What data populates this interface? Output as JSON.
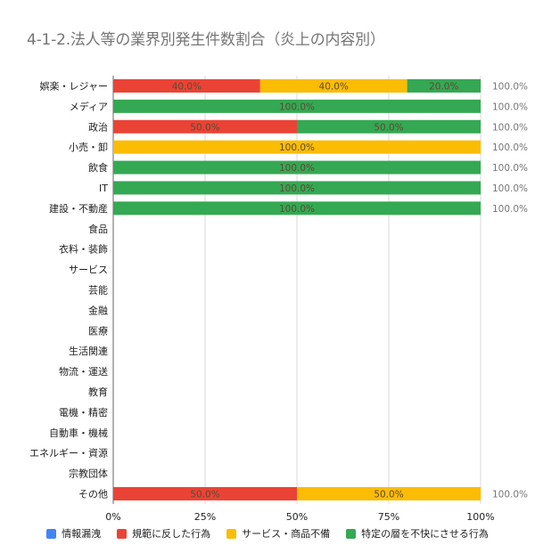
{
  "chart_data": {
    "type": "bar",
    "orientation": "horizontal",
    "stacked": "percent",
    "title": "4-1-2.法人等の業界別発生件数割合（炎上の内容別）",
    "categories": [
      "娯楽・レジャー",
      "メディア",
      "政治",
      "小売・卸",
      "飲食",
      "IT",
      "建設・不動産",
      "食品",
      "衣料・装飾",
      "サービス",
      "芸能",
      "金融",
      "医療",
      "生活関連",
      "物流・運送",
      "教育",
      "電機・精密",
      "自動車・機械",
      "エネルギー・資源",
      "宗教団体",
      "その他"
    ],
    "series": [
      {
        "name": "情報漏洩",
        "color": "#4285f4",
        "values": [
          0,
          0,
          0,
          0,
          0,
          0,
          0,
          0,
          0,
          0,
          0,
          0,
          0,
          0,
          0,
          0,
          0,
          0,
          0,
          0,
          0
        ]
      },
      {
        "name": "規範に反した行為",
        "color": "#ea4335",
        "values": [
          40,
          0,
          50,
          0,
          0,
          0,
          0,
          0,
          0,
          0,
          0,
          0,
          0,
          0,
          0,
          0,
          0,
          0,
          0,
          0,
          50
        ]
      },
      {
        "name": "サービス・商品不備",
        "color": "#fbbc04",
        "values": [
          40,
          0,
          0,
          100,
          0,
          0,
          0,
          0,
          0,
          0,
          0,
          0,
          0,
          0,
          0,
          0,
          0,
          0,
          0,
          0,
          50
        ]
      },
      {
        "name": "特定の層を不快にさせる行為",
        "color": "#34a853",
        "values": [
          20,
          100,
          50,
          0,
          100,
          100,
          100,
          0,
          0,
          0,
          0,
          0,
          0,
          0,
          0,
          0,
          0,
          0,
          0,
          0,
          0
        ]
      }
    ],
    "segment_labels": [
      [
        "",
        "40.0%",
        "40.0%",
        "20.0%"
      ],
      [
        "",
        "",
        "",
        "100.0%"
      ],
      [
        "",
        "50.0%",
        "",
        "50.0%"
      ],
      [
        "",
        "",
        "100.0%",
        ""
      ],
      [
        "",
        "",
        "",
        "100.0%"
      ],
      [
        "",
        "",
        "",
        "100.0%"
      ],
      [
        "",
        "",
        "",
        "100.0%"
      ],
      [
        "",
        "",
        "",
        ""
      ],
      [
        "",
        "",
        "",
        ""
      ],
      [
        "",
        "",
        "",
        ""
      ],
      [
        "",
        "",
        "",
        ""
      ],
      [
        "",
        "",
        "",
        ""
      ],
      [
        "",
        "",
        "",
        ""
      ],
      [
        "",
        "",
        "",
        ""
      ],
      [
        "",
        "",
        "",
        ""
      ],
      [
        "",
        "",
        "",
        ""
      ],
      [
        "",
        "",
        "",
        ""
      ],
      [
        "",
        "",
        "",
        ""
      ],
      [
        "",
        "",
        "",
        ""
      ],
      [
        "",
        "",
        "",
        ""
      ],
      [
        "",
        "50.0%",
        "50.0%",
        ""
      ]
    ],
    "total_labels": [
      "100.0%",
      "100.0%",
      "100.0%",
      "100.0%",
      "100.0%",
      "100.0%",
      "100.0%",
      "",
      "",
      "",
      "",
      "",
      "",
      "",
      "",
      "",
      "",
      "",
      "",
      "",
      "100.0%"
    ],
    "xlim": [
      0,
      100
    ],
    "xticks": [
      "0%",
      "25%",
      "50%",
      "75%",
      "100%"
    ],
    "grid": "vertical",
    "legend_position": "bottom"
  }
}
